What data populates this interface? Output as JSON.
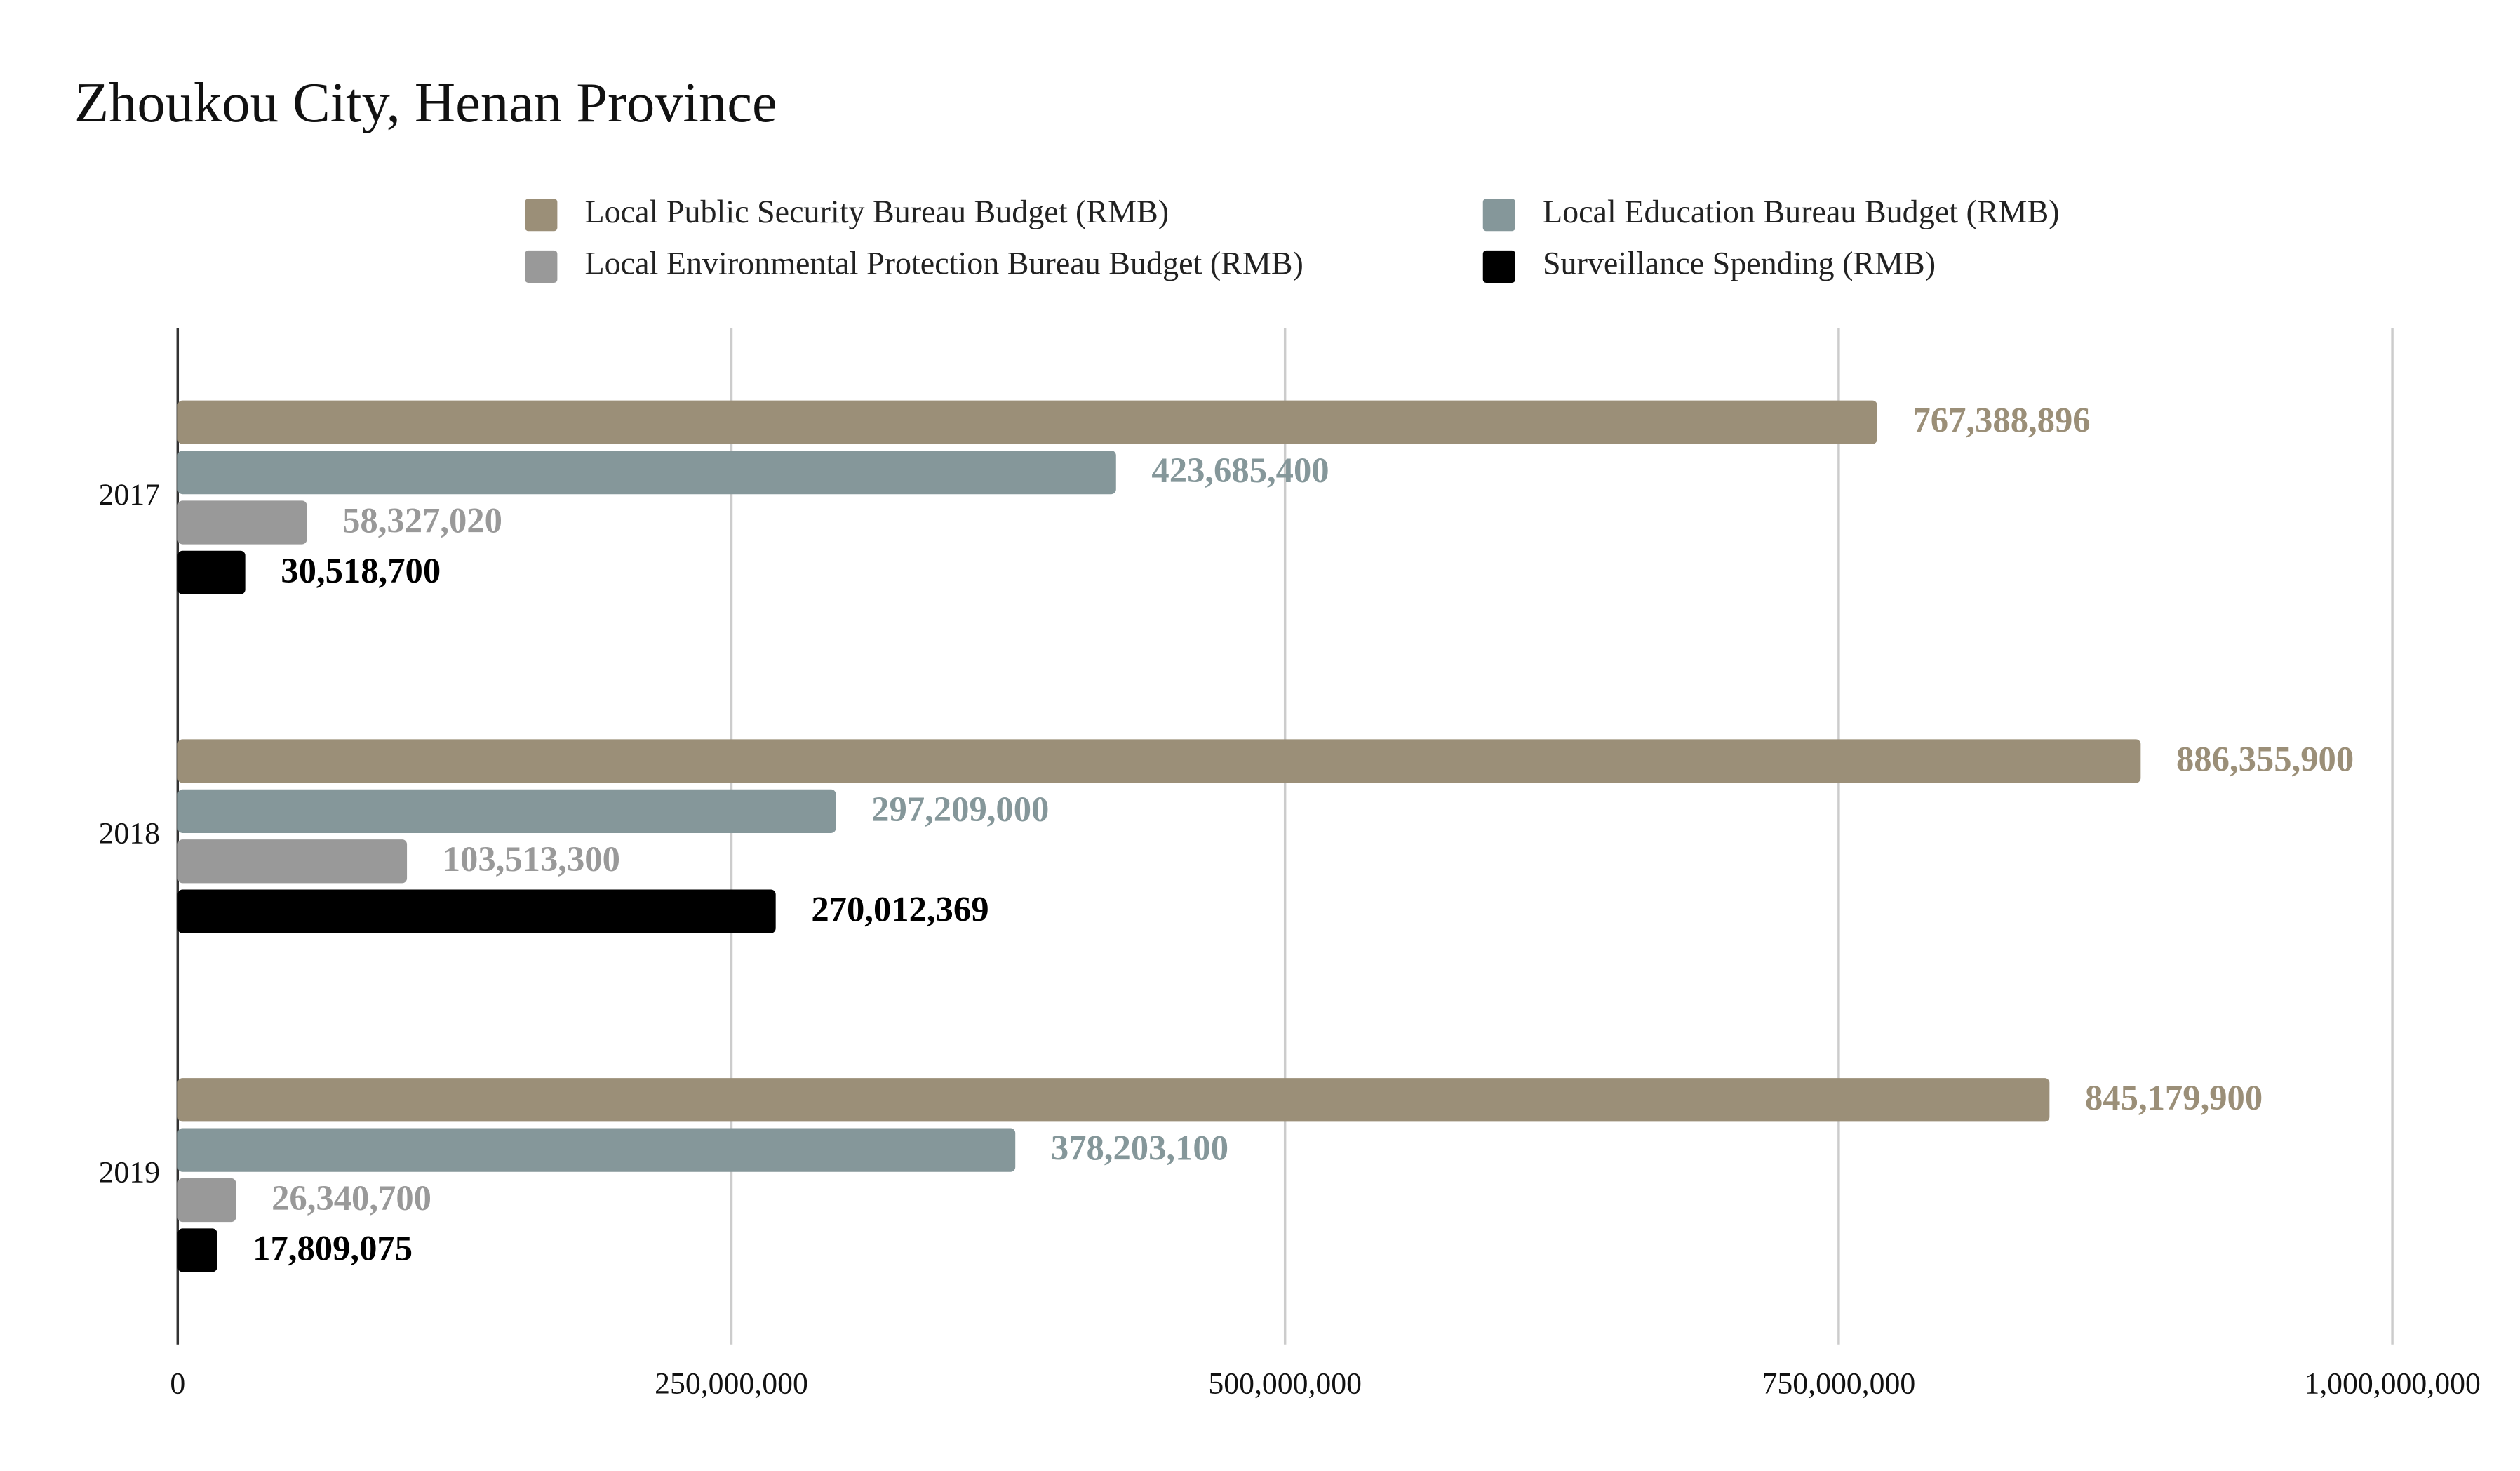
{
  "chart_data": {
    "type": "barh",
    "title": "Zhoukou City, Henan Province",
    "categories": [
      "2017",
      "2018",
      "2019"
    ],
    "series": [
      {
        "name": "Local Public Security Bureau Budget (RMB)",
        "color": "#9b8f78",
        "values": [
          767388896,
          886355900,
          845179900
        ],
        "value_labels": [
          "767,388,896",
          "886,355,900",
          "845,179,900"
        ]
      },
      {
        "name": "Local Education Bureau Budget (RMB)",
        "color": "#85979a",
        "values": [
          423685400,
          297209000,
          378203100
        ],
        "value_labels": [
          "423,685,400",
          "297,209,000",
          "378,203,100"
        ]
      },
      {
        "name": "Local Environmental Protection Bureau Budget (RMB)",
        "color": "#999999",
        "values": [
          58327020,
          103513300,
          26340700
        ],
        "value_labels": [
          "58,327,020",
          "103,513,300",
          "26,340,700"
        ]
      },
      {
        "name": "Surveillance Spending (RMB)",
        "color": "#000000",
        "values": [
          30518700,
          270012369,
          17809075
        ],
        "value_labels": [
          "30,518,700",
          "270,012,369",
          "17,809,075"
        ]
      }
    ],
    "xlim": [
      0,
      1000000000
    ],
    "xticks": [
      0,
      {
        "value": 250000000,
        "label": "250,000,000"
      },
      {
        "value": 500000000,
        "label": "500,000,000"
      },
      {
        "value": 750000000,
        "label": "750,000,000"
      },
      {
        "value": 1000000000,
        "label": "1,000,000,000"
      }
    ],
    "grid": true
  }
}
